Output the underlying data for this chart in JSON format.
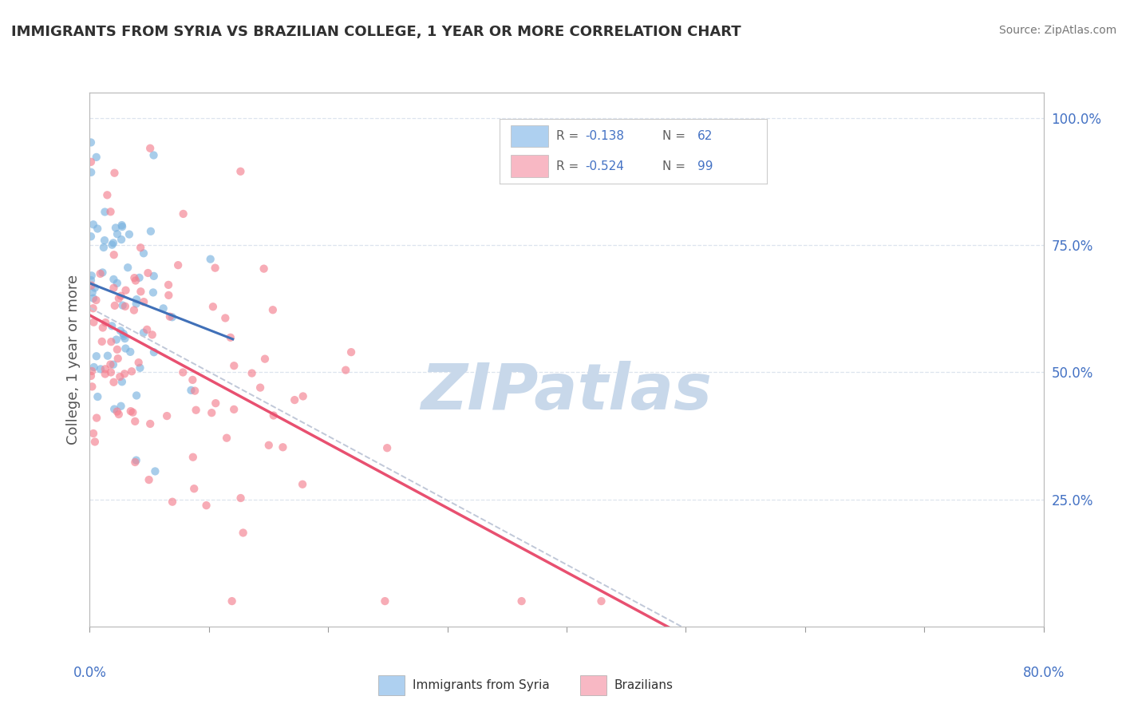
{
  "title": "IMMIGRANTS FROM SYRIA VS BRAZILIAN COLLEGE, 1 YEAR OR MORE CORRELATION CHART",
  "source": "Source: ZipAtlas.com",
  "ylabel": "College, 1 year or more",
  "ylabel_right_ticks": [
    "100.0%",
    "75.0%",
    "50.0%",
    "25.0%"
  ],
  "ylabel_right_vals": [
    1.0,
    0.75,
    0.5,
    0.25
  ],
  "xlim": [
    0.0,
    0.8
  ],
  "ylim": [
    0.0,
    1.05
  ],
  "watermark": "ZIPatlas",
  "watermark_color": "#c8d8ea",
  "syria_R": -0.138,
  "syria_N": 62,
  "brazil_R": -0.524,
  "brazil_N": 99,
  "syria_color": "#7ab3e0",
  "brazil_color": "#f48090",
  "syria_legend_color": "#aed0f0",
  "brazil_legend_color": "#f8b8c4",
  "syria_line_color": "#4070b8",
  "brazil_line_color": "#e85070",
  "regression_line_color": "#c0c8d8",
  "grid_color": "#dde4ee",
  "background_color": "#ffffff",
  "title_color": "#303030",
  "axis_label_color": "#4472c4",
  "tick_label_color": "#4472c4",
  "legend_text_color": "#4472c4",
  "legend_r_color": "#606060"
}
